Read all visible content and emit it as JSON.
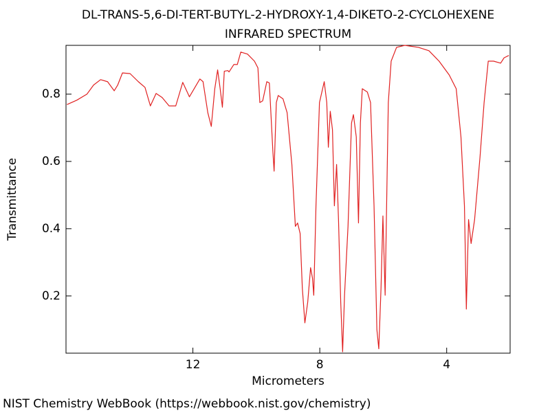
{
  "chart_data": {
    "type": "line",
    "title": "DL-TRANS-5,6-DI-TERT-BUTYL-2-HYDROXY-1,4-DIKETO-2-CYCLOHEXENE",
    "subtitle": "INFRARED SPECTRUM",
    "x_label": "Micrometers",
    "y_label": "Transmittance",
    "source": "NIST Chemistry WebBook (https://webbook.nist.gov/chemistry)",
    "color": "#e02020",
    "xlim": [
      16,
      2
    ],
    "ylim": [
      0.03,
      0.945
    ],
    "xticks": [
      12,
      8,
      4
    ],
    "yticks": [
      0.2,
      0.4,
      0.6,
      0.8
    ],
    "x": [
      15.97,
      15.66,
      15.34,
      15.13,
      14.91,
      14.69,
      14.48,
      14.37,
      14.22,
      13.98,
      13.72,
      13.51,
      13.34,
      13.16,
      12.97,
      12.75,
      12.54,
      12.32,
      12.11,
      11.78,
      11.68,
      11.53,
      11.42,
      11.31,
      11.22,
      11.14,
      11.07,
      11.01,
      10.9,
      10.86,
      10.71,
      10.6,
      10.49,
      10.28,
      10.06,
      9.95,
      9.89,
      9.8,
      9.67,
      9.59,
      9.48,
      9.44,
      9.37,
      9.31,
      9.16,
      9.03,
      8.88,
      8.77,
      8.7,
      8.62,
      8.55,
      8.47,
      8.38,
      8.29,
      8.23,
      8.19,
      8.12,
      8.01,
      7.86,
      7.78,
      7.73,
      7.67,
      7.6,
      7.54,
      7.47,
      7.41,
      7.34,
      7.28,
      7.22,
      7.11,
      7.0,
      6.94,
      6.85,
      6.78,
      6.72,
      6.66,
      6.5,
      6.4,
      6.29,
      6.2,
      6.14,
      6.07,
      6.01,
      5.94,
      5.84,
      5.75,
      5.58,
      5.32,
      4.89,
      4.56,
      4.24,
      3.92,
      3.7,
      3.55,
      3.44,
      3.38,
      3.31,
      3.23,
      3.12,
      2.95,
      2.82,
      2.69,
      2.52,
      2.3,
      2.19,
      2.04
    ],
    "values": [
      0.769,
      0.782,
      0.8,
      0.827,
      0.843,
      0.837,
      0.81,
      0.827,
      0.863,
      0.861,
      0.837,
      0.82,
      0.765,
      0.802,
      0.79,
      0.765,
      0.765,
      0.835,
      0.792,
      0.845,
      0.837,
      0.745,
      0.704,
      0.816,
      0.872,
      0.816,
      0.761,
      0.868,
      0.87,
      0.866,
      0.888,
      0.888,
      0.925,
      0.919,
      0.898,
      0.878,
      0.775,
      0.78,
      0.837,
      0.833,
      0.632,
      0.571,
      0.775,
      0.796,
      0.786,
      0.745,
      0.591,
      0.407,
      0.417,
      0.386,
      0.223,
      0.12,
      0.182,
      0.284,
      0.253,
      0.202,
      0.468,
      0.775,
      0.837,
      0.775,
      0.642,
      0.749,
      0.694,
      0.468,
      0.591,
      0.427,
      0.182,
      0.034,
      0.202,
      0.407,
      0.714,
      0.739,
      0.673,
      0.417,
      0.714,
      0.816,
      0.806,
      0.775,
      0.468,
      0.1,
      0.043,
      0.223,
      0.438,
      0.202,
      0.775,
      0.898,
      0.939,
      0.945,
      0.939,
      0.929,
      0.898,
      0.857,
      0.816,
      0.673,
      0.468,
      0.161,
      0.427,
      0.356,
      0.427,
      0.612,
      0.775,
      0.898,
      0.898,
      0.892,
      0.908,
      0.915
    ]
  }
}
